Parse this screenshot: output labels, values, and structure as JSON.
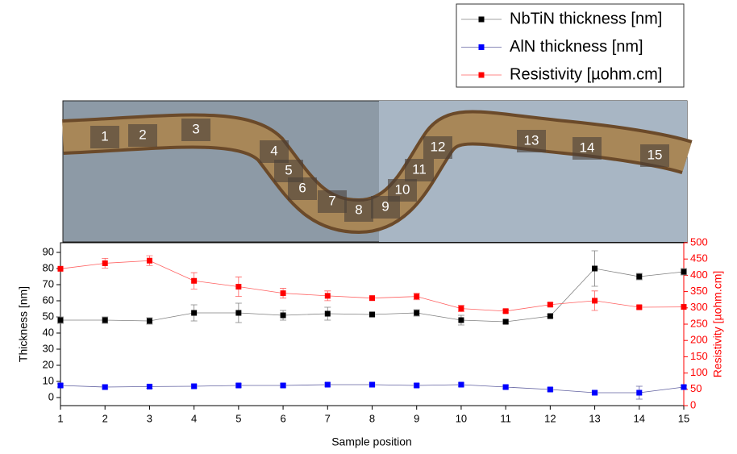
{
  "photo": {
    "labels": [
      "1",
      "2",
      "3",
      "4",
      "5",
      "6",
      "7",
      "8",
      "9",
      "10",
      "11",
      "12",
      "13",
      "14",
      "15"
    ]
  },
  "chart_data": {
    "type": "line",
    "xlabel": "Sample position",
    "ylabel": "Thickness [nm]",
    "y2label": "Resistivity [µohm.cm]",
    "x": [
      1,
      2,
      3,
      4,
      5,
      6,
      7,
      8,
      9,
      10,
      11,
      12,
      13,
      14,
      15
    ],
    "xlim": [
      1,
      15
    ],
    "xticks": [
      1,
      2,
      3,
      4,
      5,
      6,
      7,
      8,
      9,
      10,
      11,
      12,
      13,
      14,
      15
    ],
    "ylim": [
      -5,
      96
    ],
    "yticks": [
      0,
      10,
      20,
      30,
      40,
      50,
      60,
      70,
      80,
      90
    ],
    "y2lim": [
      0,
      500
    ],
    "y2ticks": [
      0,
      50,
      100,
      150,
      200,
      250,
      300,
      350,
      400,
      450,
      500
    ],
    "legend": "upper right",
    "series": [
      {
        "name": "NbTiN thickness [nm]",
        "color": "#000000",
        "line_color": "#808080",
        "values": [
          48,
          48,
          47.5,
          52.5,
          52.5,
          51,
          52,
          51.5,
          52.5,
          48,
          47,
          50.5,
          80,
          75,
          78
        ],
        "errors": [
          2,
          2,
          2,
          5,
          6,
          3,
          4,
          1,
          2,
          3,
          1,
          1,
          11,
          2,
          2
        ]
      },
      {
        "name": "AlN thickness [nm]",
        "color": "#0000ff",
        "line_color": "#6060a0",
        "values": [
          7.5,
          6.5,
          6.8,
          7,
          7.5,
          7.5,
          8,
          8,
          7.5,
          8,
          6.5,
          5,
          3,
          3,
          6.5
        ],
        "errors": [
          1,
          1,
          1,
          1,
          1,
          1,
          1,
          1,
          1,
          1,
          1,
          1,
          1,
          4,
          1
        ]
      },
      {
        "name": "Resistivity [µohm.cm]",
        "color": "#ff0000",
        "line_color": "#ff6060",
        "axis": "y2",
        "values": [
          420,
          437,
          445,
          383,
          365,
          345,
          337,
          330,
          335,
          298,
          290,
          310,
          322,
          302,
          303
        ],
        "errors": [
          0,
          15,
          15,
          25,
          30,
          15,
          15,
          0,
          10,
          10,
          5,
          5,
          30,
          5,
          0
        ]
      }
    ]
  }
}
